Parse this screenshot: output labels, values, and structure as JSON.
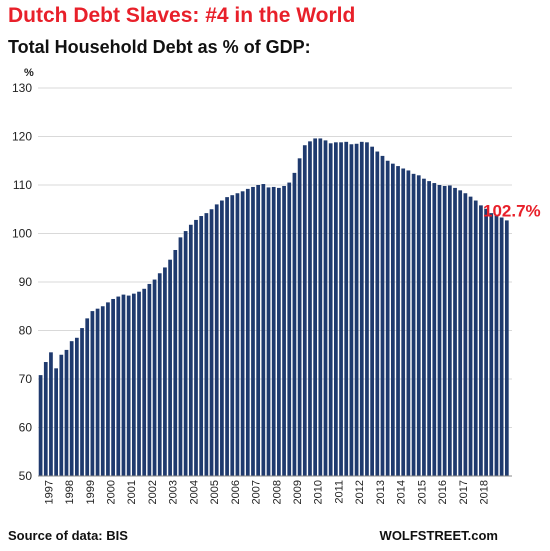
{
  "title": "Dutch Debt Slaves: #4 in the World",
  "subtitle": "Total Household Debt as % of GDP:",
  "source": "Source of data: BIS",
  "brand": "WOLFSTREET.com",
  "colors": {
    "bar": "#1f3a6e",
    "title": "#e8202a",
    "annotation": "#e8202a",
    "grid": "#d9d9d9"
  },
  "chart_data": {
    "type": "bar",
    "title": "Total Household Debt as % of GDP:",
    "ylabel": "%",
    "ylim": [
      50,
      130
    ],
    "yticks": [
      50,
      60,
      70,
      80,
      90,
      100,
      110,
      120,
      130
    ],
    "xtick_labels": [
      "1997",
      "1998",
      "1999",
      "2000",
      "2001",
      "2002",
      "2003",
      "2004",
      "2005",
      "2006",
      "2007",
      "2008",
      "2009",
      "2010",
      "2011",
      "2012",
      "2013",
      "2014",
      "2015",
      "2016",
      "2017",
      "2018"
    ],
    "grid": true,
    "frequency": "quarterly",
    "annotation": {
      "text": "102.7%",
      "value": 102.7
    },
    "values": [
      70.8,
      73.5,
      75.5,
      72.2,
      75.0,
      76.0,
      77.8,
      78.5,
      80.5,
      82.5,
      84.0,
      84.5,
      85.0,
      85.8,
      86.5,
      87.0,
      87.4,
      87.2,
      87.6,
      88.0,
      88.6,
      89.6,
      90.5,
      91.8,
      93.0,
      94.6,
      96.6,
      99.2,
      100.5,
      101.8,
      102.8,
      103.6,
      104.2,
      105.0,
      106.0,
      106.8,
      107.5,
      107.9,
      108.3,
      108.7,
      109.2,
      109.6,
      110.0,
      110.2,
      109.5,
      109.6,
      109.4,
      109.8,
      110.5,
      112.5,
      115.5,
      118.2,
      119.0,
      119.6,
      119.6,
      119.2,
      118.6,
      118.8,
      118.8,
      118.9,
      118.4,
      118.5,
      118.9,
      118.8,
      117.9,
      116.9,
      116.0,
      115.0,
      114.4,
      113.9,
      113.4,
      113.0,
      112.3,
      112.0,
      111.3,
      110.8,
      110.4,
      110.0,
      109.8,
      109.9,
      109.4,
      108.9,
      108.3,
      107.6,
      106.8,
      105.8,
      105.1,
      104.2,
      103.8,
      103.3,
      102.7
    ]
  }
}
